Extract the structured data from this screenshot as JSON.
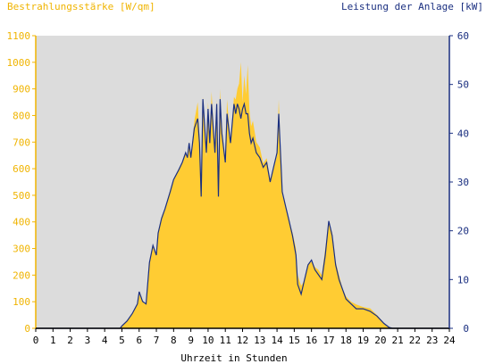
{
  "chart_data": {
    "type": "area",
    "title": "",
    "ylabel_left": "Bestrahlungsstärke [W/qm]",
    "ylabel_right": "Leistung der Anlage [kW]",
    "xlabel": "Uhrzeit in Stunden",
    "xlim": [
      0,
      24
    ],
    "ylim_left": [
      0,
      1100
    ],
    "ylim_right": [
      0,
      60
    ],
    "x_ticks": [
      "0",
      "1",
      "2",
      "3",
      "4",
      "5",
      "6",
      "7",
      "8",
      "9",
      "10",
      "11",
      "12",
      "13",
      "14",
      "15",
      "16",
      "17",
      "18",
      "19",
      "20",
      "21",
      "22",
      "23",
      "24"
    ],
    "y_ticks_left": [
      "0",
      "100",
      "200",
      "300",
      "400",
      "500",
      "600",
      "700",
      "800",
      "900",
      "1000",
      "1100"
    ],
    "y_ticks_right": [
      "0",
      "10",
      "20",
      "30",
      "40",
      "50",
      "60"
    ],
    "grid": false,
    "colors": {
      "plot_background": "#dcdcdc",
      "irradiance_fill": "#ffcc33",
      "power_line": "#1a2f80",
      "left_axis_text": "#f0b400",
      "right_axis_text": "#1a2f80"
    },
    "series": [
      {
        "axis": "left",
        "style": "filled-area",
        "x": [
          0,
          4.9,
          5.0,
          5.3,
          5.6,
          5.9,
          6.0,
          6.2,
          6.4,
          6.6,
          6.8,
          7.0,
          7.1,
          7.3,
          7.5,
          7.8,
          8.0,
          8.3,
          8.5,
          8.7,
          8.8,
          8.9,
          9.0,
          9.2,
          9.4,
          9.5,
          9.6,
          9.7,
          9.9,
          10.0,
          10.1,
          10.2,
          10.4,
          10.5,
          10.6,
          10.7,
          10.8,
          11.0,
          11.1,
          11.3,
          11.5,
          11.6,
          11.7,
          11.8,
          11.9,
          12.0,
          12.1,
          12.2,
          12.3,
          12.4,
          12.5,
          12.6,
          12.8,
          13.0,
          13.2,
          13.4,
          13.6,
          13.8,
          14.0,
          14.1,
          14.3,
          14.5,
          14.7,
          14.9,
          15.1,
          15.2,
          15.4,
          15.6,
          15.8,
          16.0,
          16.2,
          16.4,
          16.6,
          16.8,
          17.0,
          17.2,
          17.4,
          17.6,
          17.8,
          18.0,
          18.3,
          18.6,
          19.0,
          19.4,
          19.8,
          20.2,
          20.5,
          20.7,
          24
        ],
        "values": [
          0,
          0,
          10,
          30,
          55,
          90,
          130,
          100,
          90,
          250,
          310,
          280,
          360,
          420,
          450,
          520,
          560,
          600,
          620,
          660,
          640,
          700,
          640,
          780,
          850,
          720,
          500,
          870,
          640,
          850,
          700,
          890,
          660,
          860,
          500,
          900,
          760,
          620,
          860,
          700,
          870,
          860,
          900,
          920,
          1000,
          850,
          950,
          880,
          990,
          820,
          760,
          780,
          700,
          680,
          620,
          640,
          560,
          600,
          650,
          860,
          500,
          460,
          400,
          360,
          300,
          200,
          160,
          180,
          240,
          250,
          230,
          220,
          200,
          300,
          400,
          360,
          250,
          200,
          150,
          120,
          100,
          90,
          80,
          75,
          50,
          20,
          5,
          0,
          0
        ]
      },
      {
        "axis": "right",
        "style": "line",
        "x": [
          0,
          4.9,
          5.0,
          5.3,
          5.6,
          5.9,
          6.0,
          6.2,
          6.4,
          6.6,
          6.8,
          7.0,
          7.1,
          7.3,
          7.5,
          7.8,
          8.0,
          8.3,
          8.5,
          8.7,
          8.8,
          8.9,
          9.0,
          9.2,
          9.4,
          9.5,
          9.6,
          9.7,
          9.9,
          10.0,
          10.1,
          10.2,
          10.4,
          10.5,
          10.6,
          10.7,
          10.8,
          11.0,
          11.1,
          11.3,
          11.5,
          11.6,
          11.7,
          11.8,
          11.9,
          12.0,
          12.1,
          12.2,
          12.3,
          12.4,
          12.5,
          12.6,
          12.8,
          13.0,
          13.2,
          13.4,
          13.6,
          13.8,
          14.0,
          14.1,
          14.3,
          14.5,
          14.7,
          14.9,
          15.1,
          15.2,
          15.4,
          15.6,
          15.8,
          16.0,
          16.2,
          16.4,
          16.6,
          16.8,
          17.0,
          17.2,
          17.4,
          17.6,
          17.8,
          18.0,
          18.3,
          18.6,
          19.0,
          19.4,
          19.8,
          20.2,
          20.5,
          20.7,
          24
        ],
        "values": [
          0,
          0,
          0.5,
          1.5,
          3,
          5,
          7.5,
          5.5,
          5,
          13.5,
          17,
          15,
          19.5,
          22.5,
          24.5,
          28,
          30.5,
          32.5,
          34,
          36,
          35,
          38,
          35,
          41,
          43,
          38,
          27,
          47,
          36,
          45,
          38,
          46,
          36,
          46,
          27,
          47,
          40,
          34,
          44,
          38,
          46,
          44,
          46,
          45,
          43,
          45,
          46,
          44,
          44,
          40,
          38,
          39,
          36,
          35,
          33,
          34,
          30,
          33,
          36,
          44,
          28,
          25,
          22,
          19,
          15,
          9,
          7,
          10,
          13,
          14,
          12,
          11,
          10,
          15,
          22,
          19,
          13,
          10,
          8,
          6,
          5,
          4,
          4,
          3.5,
          2.5,
          1,
          0.2,
          0,
          0
        ]
      }
    ]
  }
}
